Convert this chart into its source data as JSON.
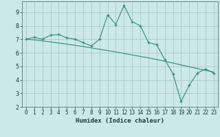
{
  "x": [
    0,
    1,
    2,
    3,
    4,
    5,
    6,
    7,
    8,
    9,
    10,
    11,
    12,
    13,
    14,
    15,
    16,
    17,
    18,
    19,
    20,
    21,
    22,
    23
  ],
  "y_zigzag": [
    7.0,
    7.15,
    7.0,
    7.3,
    7.35,
    7.1,
    7.0,
    6.75,
    6.5,
    7.0,
    8.8,
    8.1,
    9.5,
    8.3,
    8.0,
    6.75,
    6.6,
    5.5,
    4.45,
    2.4,
    3.6,
    4.5,
    4.8,
    4.5
  ],
  "y_trend": [
    7.0,
    6.95,
    6.88,
    6.8,
    6.72,
    6.64,
    6.55,
    6.46,
    6.36,
    6.26,
    6.16,
    6.06,
    5.95,
    5.84,
    5.73,
    5.62,
    5.5,
    5.37,
    5.24,
    5.1,
    4.97,
    4.83,
    4.7,
    4.57
  ],
  "line_color": "#2e8b74",
  "bg_color": "#cce8e8",
  "grid_color": "#aacaca",
  "xlabel": "Humidex (Indice chaleur)",
  "ylim": [
    2,
    9.8
  ],
  "xlim": [
    -0.5,
    23.5
  ],
  "yticks": [
    2,
    3,
    4,
    5,
    6,
    7,
    8,
    9
  ],
  "xticks": [
    0,
    1,
    2,
    3,
    4,
    5,
    6,
    7,
    8,
    9,
    10,
    11,
    12,
    13,
    14,
    15,
    16,
    17,
    18,
    19,
    20,
    21,
    22,
    23
  ],
  "tick_fontsize": 5.5,
  "xlabel_fontsize": 6.5
}
